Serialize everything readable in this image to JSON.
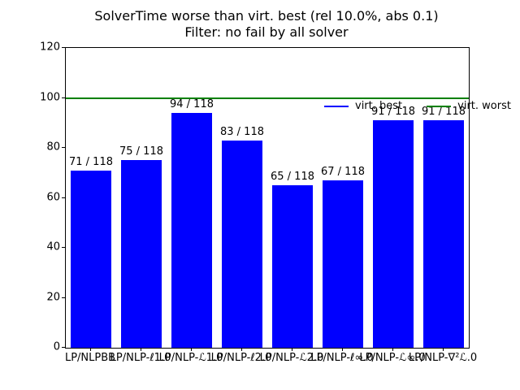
{
  "figure": {
    "background": "#ffffff",
    "text_color": "#000000"
  },
  "chart_data": {
    "type": "bar",
    "title": "SolverTime worse than virt. best (rel 10.0%, abs 0.1)",
    "subtitle": "Filter: no fail by all solver",
    "categories": [
      "LP/NLPBB",
      "LP/NLP-ℓ1.0",
      "LP/NLP-ℒ1.0",
      "LP/NLP-ℓ2.0",
      "LP/NLP-ℒ2.0",
      "LP/NLP-ℓ∞.0",
      "LP/NLP-ℒ∞.0",
      "LP/NLP-∇²ℒ.0"
    ],
    "values": [
      71,
      75,
      94,
      83,
      65,
      67,
      91,
      91
    ],
    "bar_labels": [
      "71 / 118",
      "75 / 118",
      "94 / 118",
      "83 / 118",
      "65 / 118",
      "67 / 118",
      "91 / 118",
      "91 / 118"
    ],
    "instances_total": 118,
    "bar_color": "#0000ff",
    "ylim": [
      0,
      120
    ],
    "yticks": [
      0,
      20,
      40,
      60,
      80,
      100,
      120
    ],
    "xlabel": "",
    "ylabel": "",
    "grid": false,
    "reference_lines": [
      {
        "name": "virt. worst",
        "y": 100,
        "color": "#008000"
      }
    ],
    "legend": {
      "position": "upper center inside, no frame",
      "entries": [
        {
          "label": "virt. best",
          "color": "#0000ff",
          "marker": "line"
        },
        {
          "label": "virt. worst",
          "color": "#008000",
          "marker": "line"
        }
      ]
    }
  }
}
